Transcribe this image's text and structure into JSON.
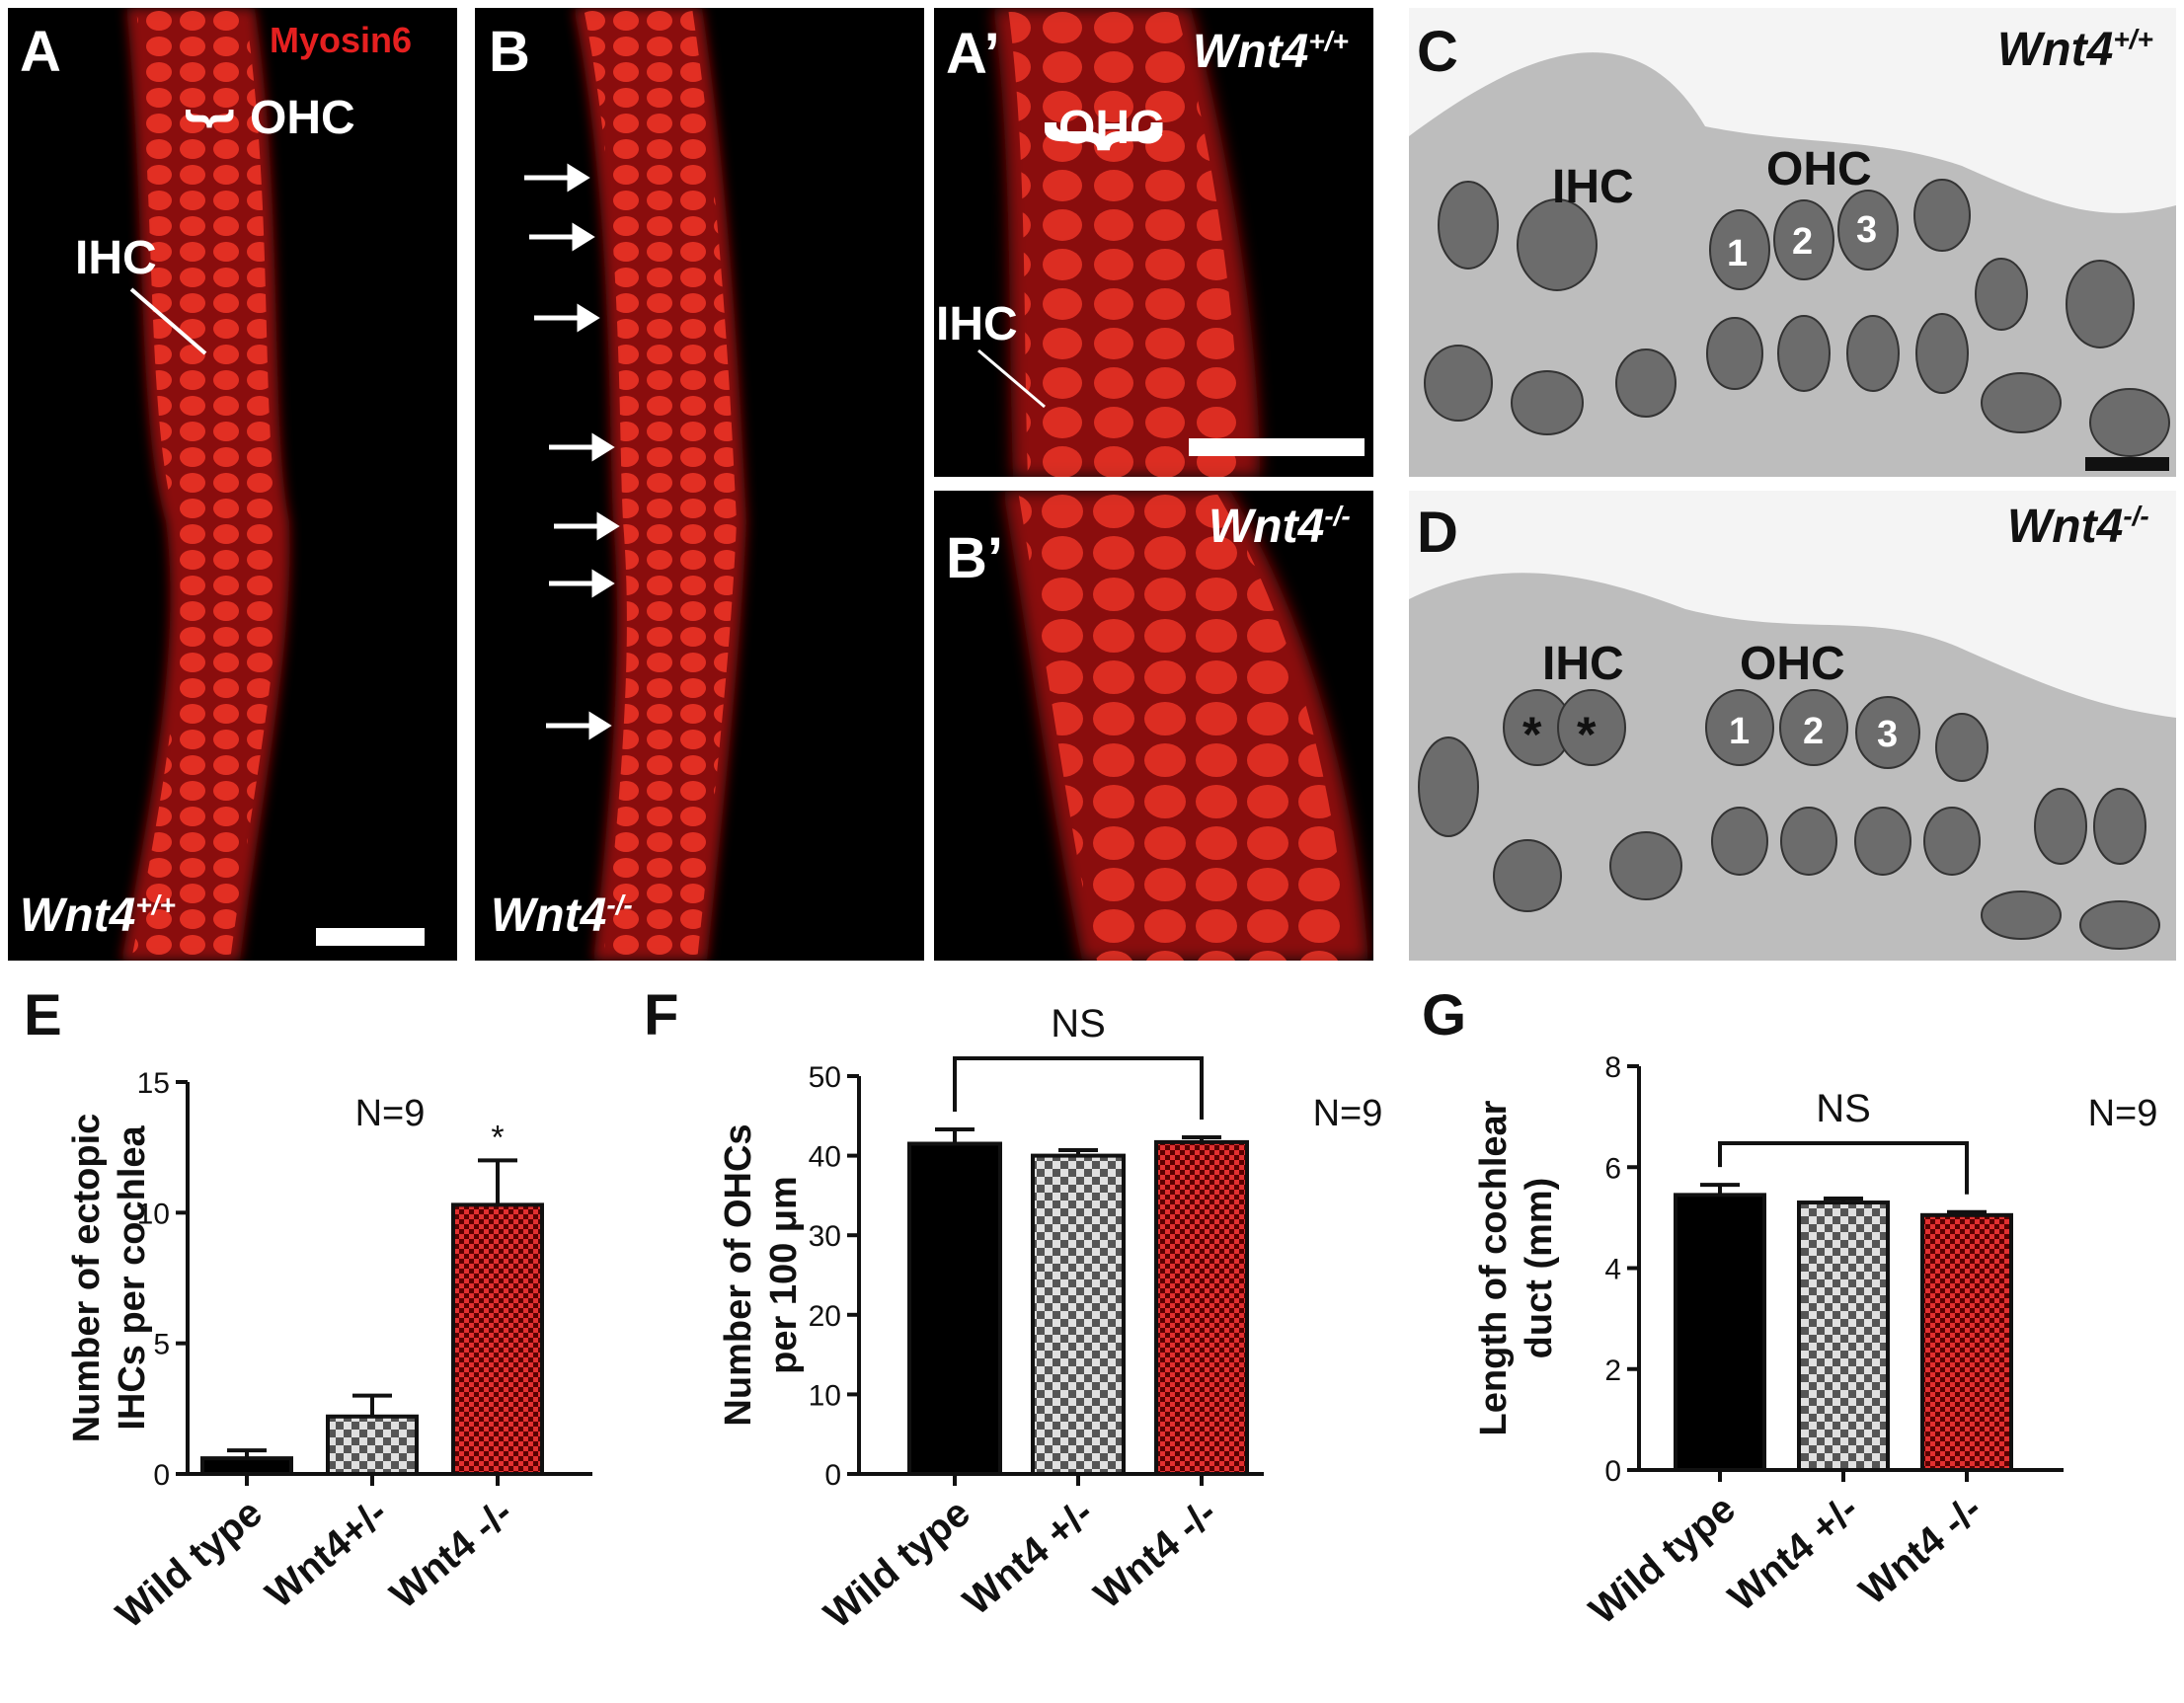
{
  "panels": {
    "A": {
      "letter": "A",
      "stain": "Myosin6",
      "ohc": "OHC",
      "ihc": "IHC",
      "genotype": "Wnt4",
      "sup": "+/+"
    },
    "B": {
      "letter": "B",
      "genotype": "Wnt4",
      "sup": "-/-"
    },
    "A_prime": {
      "letter": "A’",
      "genotype": "Wnt4",
      "sup": "+/+",
      "ohc": "OHC",
      "ihc": "IHC"
    },
    "B_prime": {
      "letter": "B’",
      "genotype": "Wnt4",
      "sup": "-/-"
    },
    "C": {
      "letter": "C",
      "genotype": "Wnt4",
      "sup": "+/+",
      "ihc": "IHC",
      "ohc": "OHC",
      "rows": [
        "1",
        "2",
        "3"
      ]
    },
    "D": {
      "letter": "D",
      "genotype": "Wnt4",
      "sup": "-/-",
      "ihc": "IHC",
      "ohc": "OHC",
      "rows": [
        "1",
        "2",
        "3"
      ],
      "ectopic_marks": [
        "*",
        "*"
      ]
    }
  },
  "colors": {
    "wild_type": "#000000",
    "het": "checker-gray",
    "ko": "checker-red",
    "fluor_red": "#e52020"
  },
  "chart_data": [
    {
      "panel": "E",
      "type": "bar",
      "categories": [
        "Wild type",
        "Wnt4+/-",
        "Wnt4 -/-"
      ],
      "values": [
        0.6,
        2.2,
        10.3
      ],
      "errors": [
        0.3,
        0.8,
        1.7
      ],
      "ylabel_lines": [
        "Number of ectopic",
        "IHCs per cochlea"
      ],
      "ylim": [
        0,
        15
      ],
      "yticks": [
        "0",
        "5",
        "10",
        "15"
      ],
      "n_label": "N=9",
      "significance": [
        {
          "bar": 2,
          "text": "*"
        }
      ]
    },
    {
      "panel": "F",
      "type": "bar",
      "categories": [
        "Wild type",
        "Wnt4 +/-",
        "Wnt4 -/-"
      ],
      "values": [
        41.5,
        40.0,
        41.7
      ],
      "errors": [
        1.8,
        0.7,
        0.6
      ],
      "ylabel_lines": [
        "Number of OHCs",
        "per 100 μm"
      ],
      "ylim": [
        0,
        50
      ],
      "yticks": [
        "0",
        "10",
        "20",
        "30",
        "40",
        "50"
      ],
      "n_label": "N=9",
      "bracket": {
        "from": 0,
        "to": 2,
        "text": "NS"
      }
    },
    {
      "panel": "G",
      "type": "bar",
      "categories": [
        "Wild type",
        "Wnt4 +/-",
        "Wnt4 -/-"
      ],
      "values": [
        5.45,
        5.3,
        5.05
      ],
      "errors": [
        0.2,
        0.08,
        0.06
      ],
      "ylabel_lines": [
        "Length of cochlear",
        "duct (mm)"
      ],
      "ylim": [
        0,
        8
      ],
      "yticks": [
        "0",
        "2",
        "4",
        "6",
        "8"
      ],
      "n_label": "N=9",
      "bracket": {
        "from": 0,
        "to": 2,
        "text": "NS"
      }
    }
  ]
}
